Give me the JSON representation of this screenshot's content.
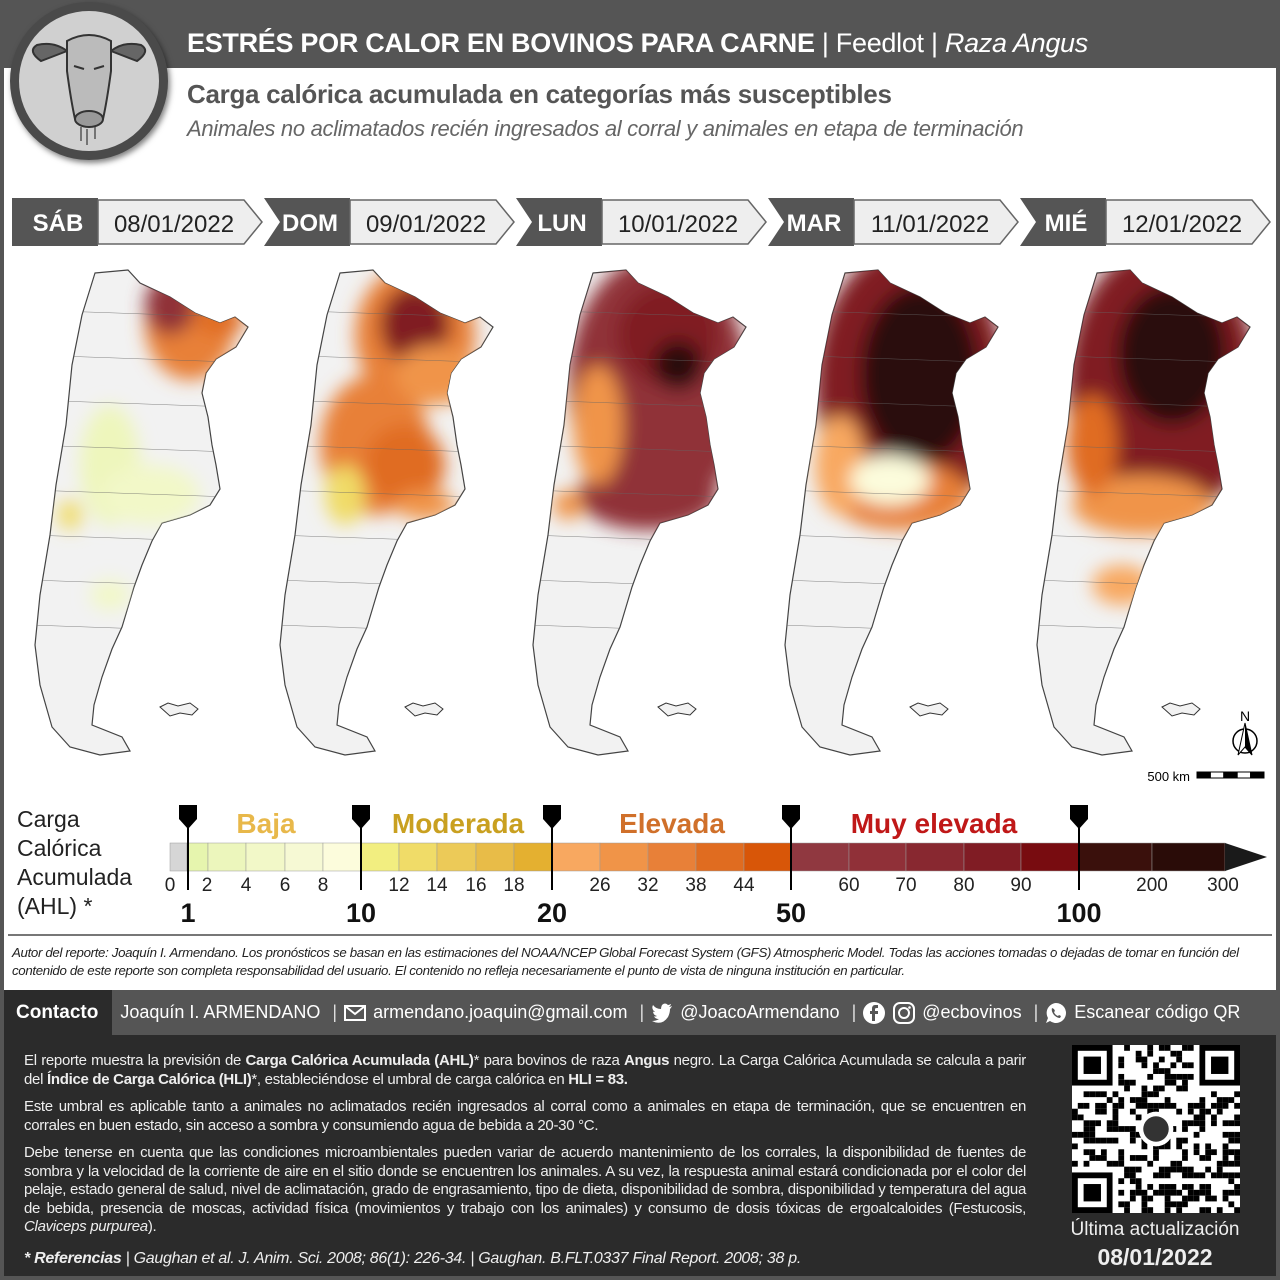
{
  "header": {
    "title_bold": "ESTRÉS POR CALOR EN BOVINOS PARA CARNE",
    "sep": " | ",
    "title_mid": "Feedlot",
    "title_italic": "Raza Angus",
    "subtitle": "Carga calórica acumulada en categorías más susceptibles",
    "subtitle2": "Animales no aclimatados recién ingresados al corral y animales en etapa de terminación"
  },
  "days": [
    {
      "day": "SÁB",
      "date": "08/01/2022"
    },
    {
      "day": "DOM",
      "date": "09/01/2022"
    },
    {
      "day": "LUN",
      "date": "10/01/2022"
    },
    {
      "day": "MAR",
      "date": "11/01/2022"
    },
    {
      "day": "MIÉ",
      "date": "12/01/2022"
    }
  ],
  "map": {
    "north": "N",
    "scale": "500 km"
  },
  "legend": {
    "title": [
      "Carga",
      "Calórica",
      "Acumulada",
      "(AHL) *"
    ],
    "categories": [
      {
        "label": "Baja",
        "color": "#e8b84a"
      },
      {
        "label": "Moderada",
        "color": "#c9a020"
      },
      {
        "label": "Elevada",
        "color": "#d0702a"
      },
      {
        "label": "Muy elevada",
        "color": "#c01818"
      }
    ],
    "ticks": [
      "0",
      "2",
      "4",
      "6",
      "8",
      "12",
      "14",
      "16",
      "18",
      "26",
      "32",
      "38",
      "44",
      "60",
      "70",
      "80",
      "90",
      "200",
      "300"
    ],
    "thresholds": [
      "1",
      "10",
      "20",
      "50",
      "100"
    ],
    "colors": [
      "#d6d6d6",
      "#e6f5ae",
      "#ecf6bc",
      "#f2f8c8",
      "#f6f9d4",
      "#fcfcdc",
      "#f2ee80",
      "#f0dc68",
      "#ecca58",
      "#e8bc48",
      "#e4b030",
      "#f8a860",
      "#f09448",
      "#e88038",
      "#e06c20",
      "#d85608",
      "#903840",
      "#903038",
      "#882830",
      "#801c24",
      "#780c10",
      "#3a100c",
      "#2a0c08",
      "#1a1a1a"
    ]
  },
  "disclaimer": "Autor del reporte: Joaquín I. Armendano. Los pronósticos se basan en las estimaciones del NOAA/NCEP Global Forecast System (GFS) Atmospheric Model. Todas las acciones tomadas o dejadas de tomar en función del contenido de este reporte son completa responsabilidad del usuario. El contenido no refleja necesariamente el punto de vista de ninguna institución en particular.",
  "contact": {
    "label": "Contacto",
    "name": "Joaquín I. ARMENDANO",
    "email": "armendano.joaquin@gmail.com",
    "twitter": "@JoacoArmendano",
    "social": "@ecbovinos",
    "qr": "Escanear código QR"
  },
  "info": {
    "p1": [
      "El reporte muestra la previsión de ",
      "Carga Calórica Acumulada (AHL)",
      "* para bovinos de raza ",
      "Angus",
      " negro. La Carga Calórica Acumulada se calcula a parir del ",
      "Índice de Carga Calórica (HLI)",
      "*, estableciéndose el umbral de carga calórica en ",
      "HLI = 83."
    ],
    "p2": "Este umbral es aplicable tanto a animales no aclimatados recién ingresados al corral como a animales en etapa de terminación, que se encuentren en corrales en buen estado, sin acceso a sombra y consumiendo agua de bebida a 20-30 °C.",
    "p3": "Debe tenerse en cuenta que las condiciones microambientales pueden variar de acuerdo mantenimiento de los corrales, la disponibilidad de fuentes de sombra y la velocidad de la corriente de aire en el sitio donde se encuentren los animales. A su vez, la respuesta animal estará condicionada por el color del pelaje, estado general de salud, nivel de aclimatación, grado de engrasamiento, tipo de dieta, disponibilidad de sombra, disponibilidad y temperatura del agua de bebida, presencia de moscas, actividad física (movimientos y trabajo con los animales) y consumo de dosis tóxicas de ergoalcaloides (Festucosis, ",
    "p3_italic": "Claviceps purpurea",
    "p3_end": ").",
    "ref_label": "* Referencias",
    "ref_text": " |  Gaughan et al.  J. Anim. Sci. 2008; 86(1): 226-34. | Gaughan. B.FLT.0337 Final Report. 2008; 38 p."
  },
  "update": {
    "label": "Última actualización",
    "date": "08/01/2022"
  }
}
